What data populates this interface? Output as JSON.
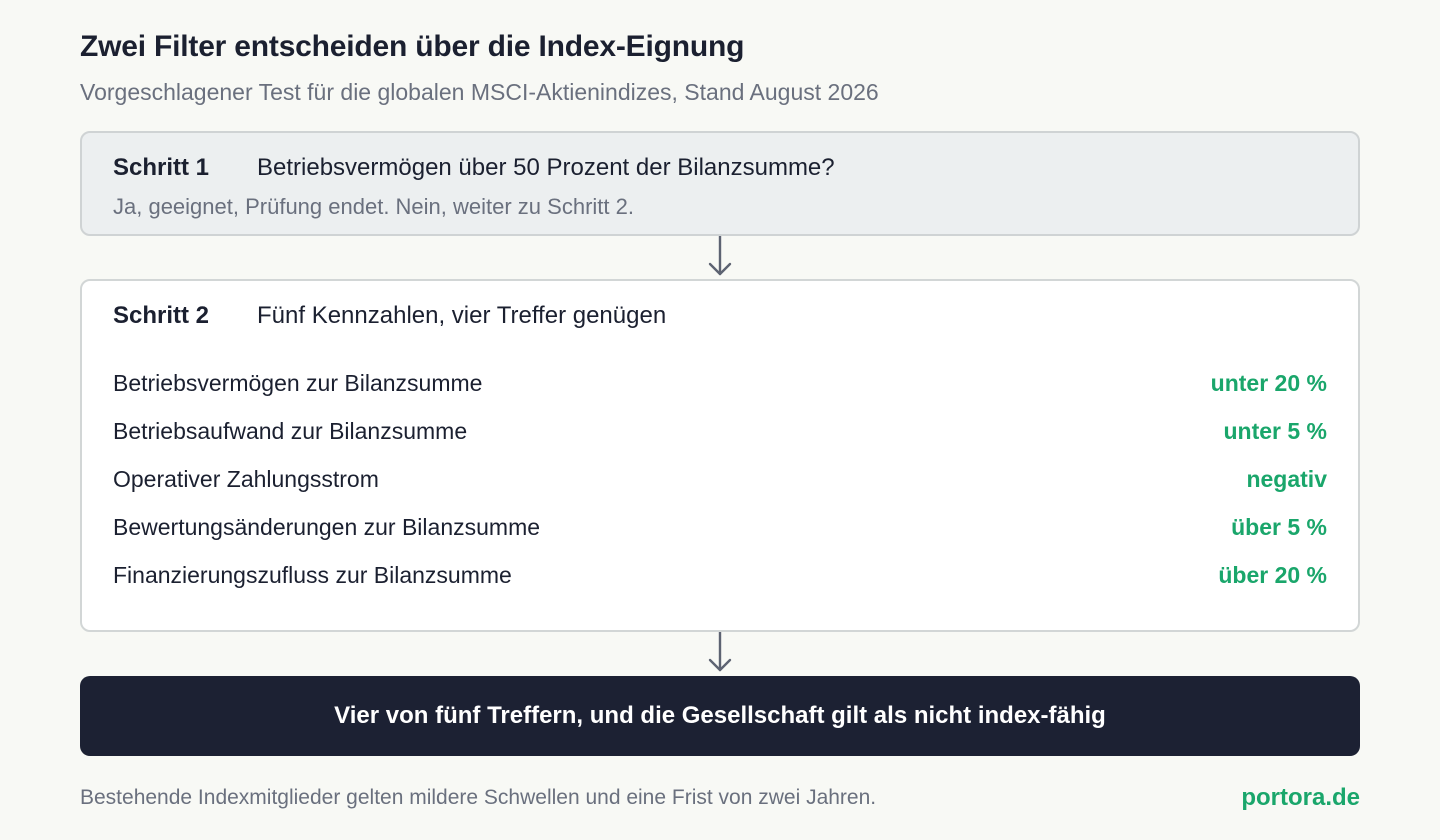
{
  "header": {
    "title": "Zwei Filter entscheiden über die Index-Eignung",
    "subtitle": "Vorgeschlagener Test für die globalen MSCI-Aktienindizes, Stand August 2026"
  },
  "step1": {
    "label": "Schritt 1",
    "question": "Betriebsvermögen über 50 Prozent der Bilanzsumme?",
    "note": "Ja, geeignet, Prüfung endet. Nein, weiter zu Schritt 2."
  },
  "step2": {
    "label": "Schritt 2",
    "question": "Fünf Kennzahlen, vier Treffer genügen",
    "criteria": [
      {
        "name": "Betriebsvermögen zur Bilanzsumme",
        "threshold": "unter 20 %"
      },
      {
        "name": "Betriebsaufwand zur Bilanzsumme",
        "threshold": "unter 5 %"
      },
      {
        "name": "Operativer Zahlungsstrom",
        "threshold": "negativ"
      },
      {
        "name": "Bewertungsänderungen zur Bilanzsumme",
        "threshold": "über 5 %"
      },
      {
        "name": "Finanzierungszufluss zur Bilanzsumme",
        "threshold": "über 20 %"
      }
    ]
  },
  "result": {
    "text": "Vier von fünf Treffern, und die Gesellschaft gilt als nicht index-fähig"
  },
  "footer": {
    "note": "Bestehende Indexmitglieder gelten mildere Schwellen und eine Frist von zwei Jahren.",
    "brand": "portora.de"
  },
  "colors": {
    "accent": "#1aa66b",
    "dark": "#1c2133",
    "step1_bg": "#eceff0",
    "muted_text": "#6a707e"
  },
  "icons": {
    "flow_arrow": "arrow-down-icon"
  }
}
